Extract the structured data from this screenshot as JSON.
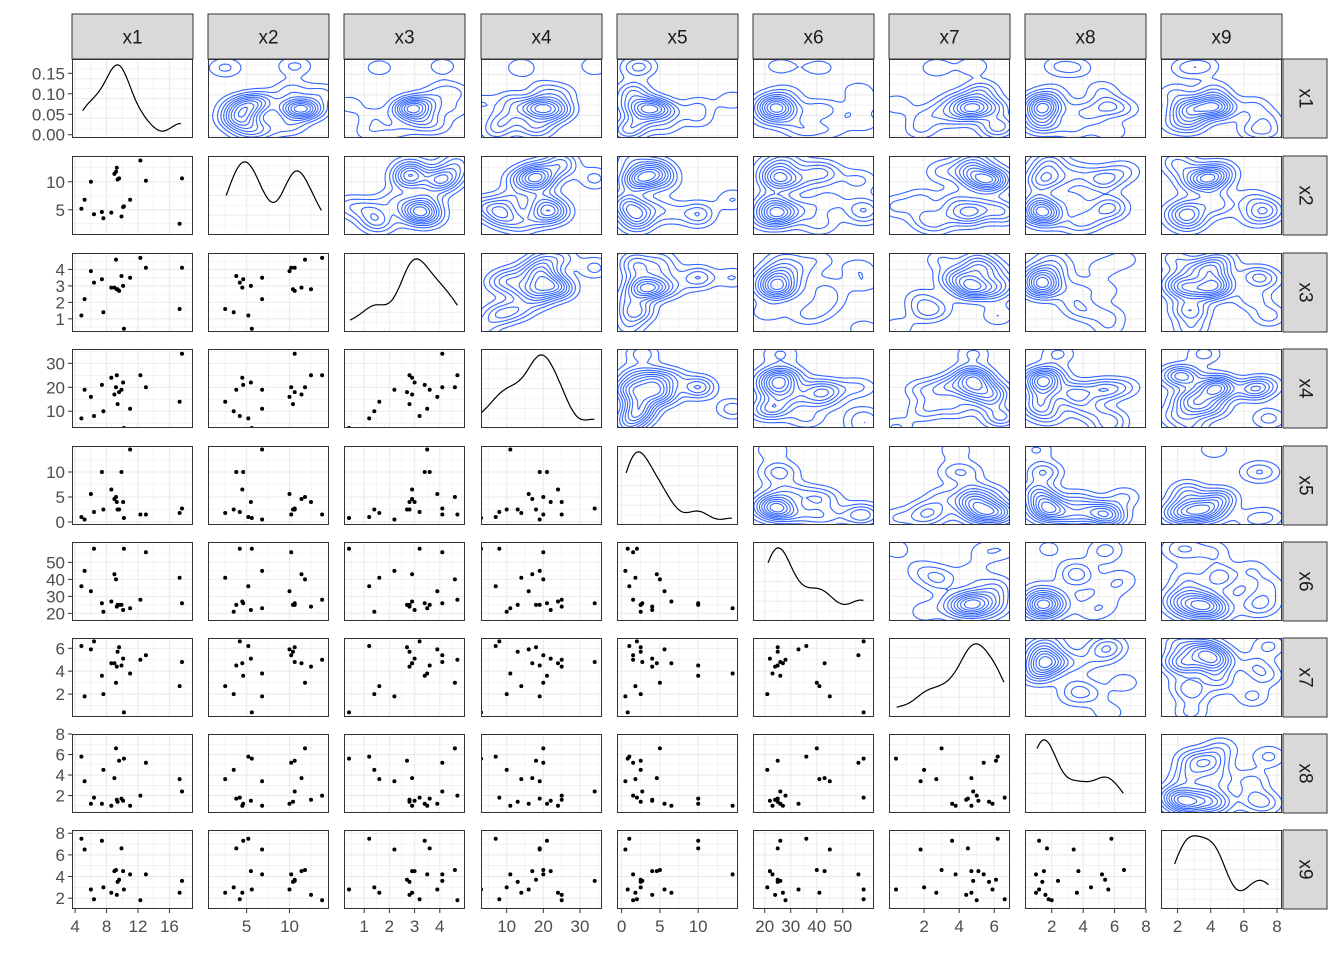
{
  "chart_data": {
    "type": "scatter",
    "title": "",
    "description_kind": "pairs-plot",
    "variables": [
      "x1",
      "x2",
      "x3",
      "x4",
      "x5",
      "x6",
      "x7",
      "x8",
      "x9"
    ],
    "layout": {
      "lower": "scatter",
      "diagonal": "density",
      "upper": "2d-density-contours",
      "strip_labels": "top (columns) and right (rows)"
    },
    "colors": {
      "points": "#000000",
      "density": "#000000",
      "contours": "#3366ff",
      "strip_fill": "#d9d9d9",
      "panel_border": "#333333",
      "grid": "#ebebeb"
    },
    "axes": {
      "x1": {
        "range": [
          3.6,
          19.0
        ],
        "ticks": [
          4,
          8,
          12,
          16
        ],
        "density_ticks": [
          0.0,
          0.05,
          0.1,
          0.15
        ],
        "density_tick_labels": [
          "0.00",
          "0.05",
          "0.10",
          "0.15"
        ],
        "density_range": [
          -0.008,
          0.185
        ]
      },
      "x2": {
        "range": [
          0.5,
          14.6
        ],
        "ticks": [
          5,
          10
        ]
      },
      "x3": {
        "range": [
          0.2,
          5.0
        ],
        "ticks": [
          1,
          2,
          3,
          4
        ]
      },
      "x4": {
        "range": [
          3.0,
          36.0
        ],
        "ticks": [
          10,
          20,
          30
        ]
      },
      "x5": {
        "range": [
          -0.6,
          15.2
        ],
        "ticks": [
          0,
          5,
          10
        ]
      },
      "x6": {
        "range": [
          15.5,
          62.0
        ],
        "ticks": [
          20,
          30,
          40,
          50
        ]
      },
      "x7": {
        "range": [
          0.0,
          6.9
        ],
        "ticks": [
          2,
          4,
          6
        ]
      },
      "x8": {
        "range": [
          0.3,
          8.0
        ],
        "ticks": [
          2,
          4,
          6,
          8
        ]
      },
      "x9": {
        "range": [
          1.0,
          8.3
        ],
        "ticks": [
          2,
          4,
          6,
          8
        ]
      }
    },
    "observations": {
      "x1": [
        10.1,
        9.4,
        9.2,
        8.6,
        5.2,
        7.6,
        4.8,
        12.3,
        17.6,
        11.0,
        6.4,
        6.0,
        9.3,
        17.3,
        10.2,
        9.6,
        9.9,
        7.4,
        13.0,
        9.0
      ],
      "x2": [
        5.5,
        10.4,
        11.8,
        4.5,
        6.8,
        3.5,
        5.2,
        13.8,
        10.6,
        6.8,
        4.2,
        10.0,
        12.5,
        2.5,
        5.6,
        10.6,
        3.8,
        4.6,
        10.2,
        11.4
      ],
      "x3": [
        3.0,
        2.8,
        4.6,
        2.9,
        2.2,
        1.4,
        1.2,
        4.7,
        4.1,
        3.5,
        3.2,
        3.9,
        2.8,
        1.6,
        0.4,
        2.7,
        3.6,
        3.4,
        4.1,
        2.9
      ],
      "x4": [
        22.0,
        13.0,
        20.0,
        24.0,
        19.0,
        10.0,
        7.0,
        25.0,
        34.0,
        11.0,
        8.0,
        16.0,
        25.0,
        14.0,
        3.0,
        18.0,
        19.0,
        21.0,
        20.0,
        17.0
      ],
      "x5": [
        4.0,
        2.5,
        5.0,
        6.5,
        0.5,
        2.5,
        1.0,
        1.5,
        2.7,
        14.5,
        2.0,
        5.6,
        4.0,
        1.8,
        0.8,
        2.5,
        10.0,
        10.0,
        1.5,
        4.6
      ],
      "x6": [
        22.0,
        25.0,
        40.0,
        27.0,
        45.0,
        21.0,
        36.0,
        28.0,
        26.0,
        23.0,
        58.0,
        33.0,
        24.0,
        41.0,
        58.0,
        25.0,
        25.0,
        26.0,
        56.0,
        43.0
      ],
      "x7": [
        5.1,
        5.7,
        3.0,
        4.7,
        1.8,
        2.0,
        6.2,
        5.0,
        4.8,
        3.8,
        6.6,
        5.9,
        4.4,
        2.7,
        0.4,
        6.1,
        4.5,
        3.6,
        5.4,
        4.7
      ],
      "x8": [
        1.5,
        1.4,
        6.6,
        1.0,
        3.4,
        4.5,
        5.8,
        2.0,
        2.4,
        1.0,
        1.8,
        1.2,
        1.6,
        3.6,
        5.6,
        5.4,
        1.7,
        1.2,
        5.2,
        3.7
      ],
      "x9": [
        4.5,
        3.5,
        4.6,
        2.5,
        6.5,
        3.0,
        7.5,
        1.8,
        3.6,
        4.2,
        1.9,
        2.8,
        2.3,
        2.5,
        2.8,
        3.7,
        6.6,
        7.3,
        4.2,
        4.5
      ]
    }
  }
}
